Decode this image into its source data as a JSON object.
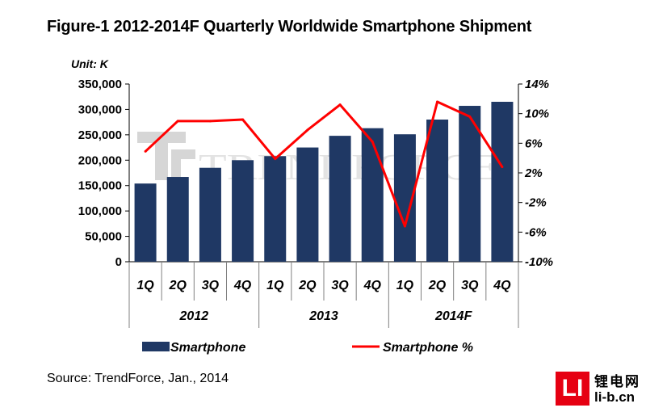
{
  "title": "Figure-1 2012-2014F Quarterly Worldwide Smartphone Shipment",
  "source": "Source: TrendForce, Jan., 2014",
  "watermark": "TRENDFORCE",
  "logo": {
    "mark": "LI",
    "name": "锂电网",
    "url": "li-b.cn"
  },
  "colors": {
    "bar": "#1f3864",
    "line": "#ff0000",
    "logo": "#e60012"
  },
  "chart_data": {
    "type": "bar+line",
    "unit_label": "Unit: K",
    "categories": [
      "1Q",
      "2Q",
      "3Q",
      "4Q",
      "1Q",
      "2Q",
      "3Q",
      "4Q",
      "1Q",
      "2Q",
      "3Q",
      "4Q"
    ],
    "groups": [
      {
        "label": "2012",
        "span": 4
      },
      {
        "label": "2013",
        "span": 4
      },
      {
        "label": "2014F",
        "span": 4
      }
    ],
    "series": [
      {
        "name": "Smartphone",
        "type": "bar",
        "axis": "left",
        "values": [
          154000,
          167000,
          185000,
          200000,
          208000,
          225000,
          248000,
          263000,
          251000,
          280000,
          307000,
          315000
        ]
      },
      {
        "name": "Smartphone %",
        "type": "line",
        "axis": "right",
        "values": [
          4.9,
          9.0,
          9.0,
          9.2,
          3.9,
          7.8,
          11.2,
          6.2,
          -5.2,
          11.6,
          9.6,
          2.8
        ]
      }
    ],
    "y_left": {
      "min": 0,
      "max": 350000,
      "step": 50000,
      "ticks": [
        "0",
        "50,000",
        "100,000",
        "150,000",
        "200,000",
        "250,000",
        "300,000",
        "350,000"
      ]
    },
    "y_right": {
      "min": -10,
      "max": 14,
      "step": 4,
      "ticks": [
        "-10%",
        "-6%",
        "-2%",
        "2%",
        "6%",
        "10%",
        "14%"
      ]
    },
    "legend": [
      "Smartphone",
      "Smartphone %"
    ]
  }
}
